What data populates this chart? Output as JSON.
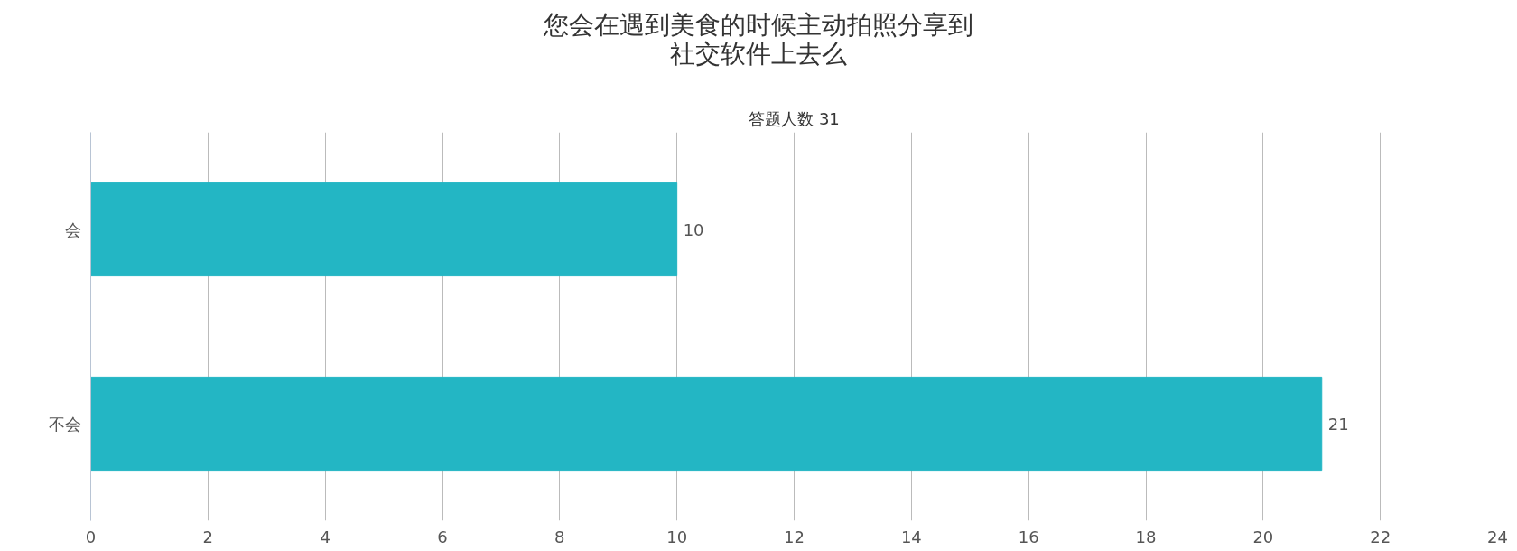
{
  "chart_data": {
    "type": "bar",
    "orientation": "horizontal",
    "title": "您会在遇到美食的时候主动拍照分享到社交软件上去么",
    "subtitle": "答题人数 31",
    "categories": [
      "会",
      "不会"
    ],
    "values": [
      10,
      21
    ],
    "color": "#23b6c4",
    "xlim": [
      0,
      24
    ],
    "xticks": [
      0,
      2,
      4,
      6,
      8,
      10,
      12,
      14,
      16,
      18,
      20,
      22,
      24
    ],
    "grid": "x",
    "data_labels": true
  }
}
